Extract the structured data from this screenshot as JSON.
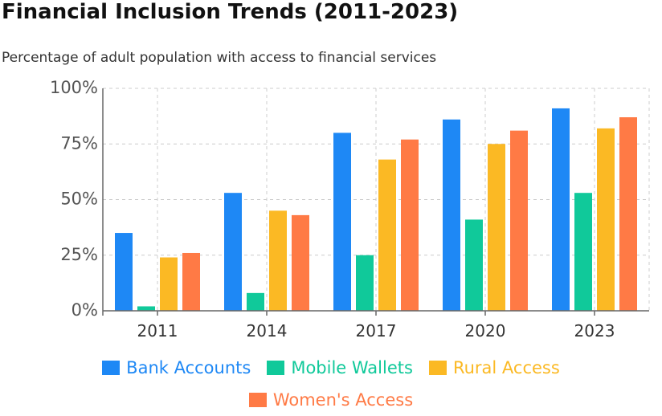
{
  "chart_data": {
    "type": "bar",
    "title": "Financial Inclusion Trends (2011-2023)",
    "subtitle": "Percentage of adult population with access to financial services",
    "categories": [
      "2011",
      "2014",
      "2017",
      "2020",
      "2023"
    ],
    "series": [
      {
        "name": "Bank Accounts",
        "color": "#1e88f5",
        "values": [
          35,
          53,
          80,
          86,
          91
        ]
      },
      {
        "name": "Mobile Wallets",
        "color": "#10c99a",
        "values": [
          2,
          8,
          25,
          41,
          53
        ]
      },
      {
        "name": "Rural Access",
        "color": "#fbb924",
        "values": [
          24,
          45,
          68,
          75,
          82
        ]
      },
      {
        "name": "Women's Access",
        "color": "#ff7a45",
        "values": [
          26,
          43,
          77,
          81,
          87
        ]
      }
    ],
    "ylim": [
      0,
      100
    ],
    "yticks": [
      "0%",
      "25%",
      "50%",
      "75%",
      "100%"
    ],
    "grid": true,
    "legend_position": "bottom"
  }
}
